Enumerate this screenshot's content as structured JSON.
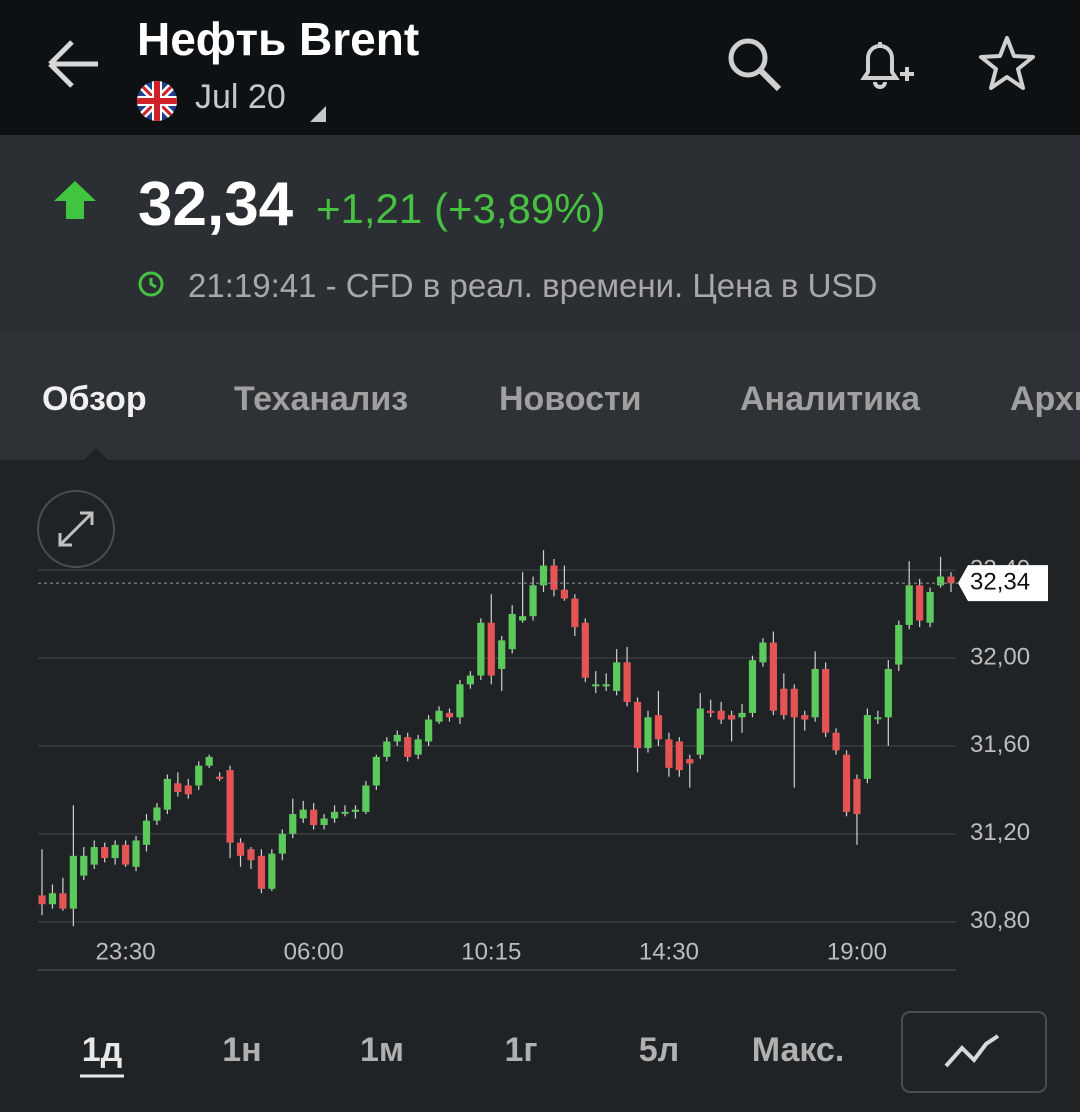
{
  "header": {
    "title": "Нефть Brent",
    "subtitle": "Jul 20"
  },
  "quote": {
    "price": "32,34",
    "change": "+1,21 (+3,89%)",
    "time_note": "21:19:41 - CFD в реал. времени. Цена в USD"
  },
  "tabs": [
    "Обзор",
    "Теханализ",
    "Новости",
    "Аналитика",
    "Архив"
  ],
  "chart_data": {
    "type": "candlestick",
    "categories": [
      null,
      null,
      null,
      null,
      null,
      null,
      null,
      null,
      "23:30",
      null,
      null,
      null,
      null,
      null,
      null,
      null,
      null,
      null,
      null,
      null,
      null,
      null,
      null,
      null,
      null,
      null,
      "06:00",
      null,
      null,
      null,
      null,
      null,
      null,
      null,
      null,
      null,
      null,
      null,
      null,
      null,
      null,
      null,
      null,
      "10:15",
      null,
      null,
      null,
      null,
      null,
      null,
      null,
      null,
      null,
      null,
      null,
      null,
      null,
      null,
      null,
      null,
      "14:30",
      null,
      null,
      null,
      null,
      null,
      null,
      null,
      null,
      null,
      null,
      null,
      null,
      null,
      null,
      null,
      null,
      null,
      "19:00",
      null,
      null,
      null,
      null,
      null,
      null,
      null,
      null,
      null
    ],
    "open": [
      30.92,
      30.88,
      30.93,
      30.86,
      31.01,
      31.06,
      31.14,
      31.09,
      31.15,
      31.05,
      31.15,
      31.26,
      31.31,
      31.43,
      31.42,
      31.42,
      31.51,
      31.46,
      31.49,
      31.16,
      31.13,
      31.1,
      30.95,
      31.11,
      31.2,
      31.27,
      31.31,
      31.24,
      31.27,
      31.3,
      31.3,
      31.3,
      31.42,
      31.55,
      31.62,
      31.64,
      31.56,
      31.62,
      31.71,
      31.75,
      31.73,
      31.88,
      31.92,
      32.16,
      31.95,
      32.04,
      32.17,
      32.19,
      32.33,
      32.42,
      32.31,
      32.27,
      32.16,
      31.88,
      31.88,
      31.85,
      31.98,
      31.8,
      31.59,
      31.74,
      31.63,
      31.62,
      31.54,
      31.56,
      31.76,
      31.76,
      31.74,
      31.73,
      31.75,
      31.98,
      32.07,
      31.86,
      31.86,
      31.74,
      31.73,
      31.95,
      31.66,
      31.56,
      31.45,
      31.45,
      31.73,
      31.73,
      31.97,
      32.15,
      32.33,
      32.16,
      32.33,
      32.37
    ],
    "high": [
      31.13,
      30.97,
      31.0,
      31.33,
      31.14,
      31.17,
      31.16,
      31.17,
      31.17,
      31.19,
      31.29,
      31.34,
      31.47,
      31.48,
      31.45,
      31.53,
      31.56,
      31.48,
      31.51,
      31.18,
      31.14,
      31.13,
      31.13,
      31.22,
      31.36,
      31.35,
      31.34,
      31.29,
      31.33,
      31.33,
      31.33,
      31.44,
      31.56,
      31.64,
      31.67,
      31.66,
      31.65,
      31.74,
      31.78,
      31.77,
      31.9,
      31.94,
      32.18,
      32.29,
      32.1,
      32.24,
      32.39,
      32.37,
      32.49,
      32.45,
      32.42,
      32.29,
      32.18,
      31.94,
      31.93,
      32.04,
      32.05,
      31.82,
      31.76,
      31.85,
      31.66,
      31.64,
      31.56,
      31.84,
      31.81,
      31.8,
      31.76,
      31.79,
      32.01,
      32.09,
      32.12,
      31.93,
      31.88,
      31.76,
      32.03,
      31.98,
      31.68,
      31.58,
      31.47,
      31.77,
      31.76,
      31.99,
      32.17,
      32.44,
      32.36,
      32.32,
      32.46,
      32.39
    ],
    "low": [
      30.83,
      30.86,
      30.85,
      30.78,
      30.99,
      31.04,
      31.07,
      31.06,
      31.05,
      31.03,
      31.12,
      31.24,
      31.29,
      31.37,
      31.36,
      31.4,
      31.5,
      31.44,
      31.09,
      31.05,
      31.04,
      30.93,
      30.94,
      31.08,
      31.18,
      31.25,
      31.22,
      31.22,
      31.25,
      31.28,
      31.27,
      31.29,
      31.4,
      31.53,
      31.6,
      31.53,
      31.54,
      31.6,
      31.7,
      31.71,
      31.7,
      31.86,
      31.9,
      31.88,
      31.85,
      32.02,
      32.16,
      32.17,
      32.3,
      32.28,
      32.26,
      32.1,
      31.89,
      31.84,
      31.85,
      31.83,
      31.78,
      31.48,
      31.57,
      31.6,
      31.46,
      31.46,
      31.41,
      31.54,
      31.73,
      31.7,
      31.62,
      31.66,
      31.73,
      31.96,
      31.74,
      31.72,
      31.41,
      31.67,
      31.71,
      31.64,
      31.56,
      31.28,
      31.15,
      31.43,
      31.7,
      31.6,
      31.94,
      32.13,
      32.14,
      32.14,
      32.32,
      32.3
    ],
    "close": [
      30.88,
      30.93,
      30.86,
      31.1,
      31.1,
      31.14,
      31.09,
      31.15,
      31.06,
      31.17,
      31.26,
      31.32,
      31.45,
      31.39,
      31.38,
      31.51,
      31.55,
      31.45,
      31.16,
      31.1,
      31.08,
      30.95,
      31.11,
      31.2,
      31.29,
      31.31,
      31.24,
      31.27,
      31.3,
      31.3,
      31.31,
      31.42,
      31.55,
      31.62,
      31.65,
      31.55,
      31.63,
      31.72,
      31.76,
      31.73,
      31.88,
      31.92,
      32.16,
      31.92,
      32.08,
      32.2,
      32.19,
      32.33,
      32.42,
      32.31,
      32.27,
      32.14,
      31.91,
      31.88,
      31.88,
      31.98,
      31.8,
      31.59,
      31.73,
      31.63,
      31.5,
      31.49,
      31.52,
      31.77,
      31.75,
      31.72,
      31.72,
      31.75,
      31.99,
      32.07,
      31.76,
      31.74,
      31.73,
      31.72,
      31.95,
      31.66,
      31.58,
      31.3,
      31.29,
      31.74,
      31.73,
      31.95,
      32.15,
      32.33,
      32.17,
      32.3,
      32.37,
      32.34
    ],
    "up_color": "#5cc95c",
    "down_color": "#e45454",
    "ylim": [
      30.74,
      32.55
    ],
    "yticks": [
      {
        "value": 30.8,
        "label": "30,80"
      },
      {
        "value": 31.2,
        "label": "31,20"
      },
      {
        "value": 31.6,
        "label": "31,60"
      },
      {
        "value": 32,
        "label": "32,00"
      },
      {
        "value": 32.4,
        "label": "32,40"
      }
    ],
    "current_price": {
      "value": 32.34,
      "label": "32,34"
    },
    "grid": true
  },
  "periods": [
    "1д",
    "1н",
    "1м",
    "1г",
    "5л",
    "Макс."
  ]
}
